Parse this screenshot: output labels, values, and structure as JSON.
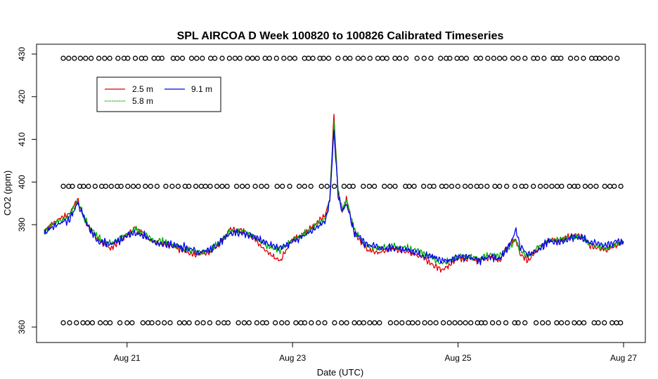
{
  "chart_data": {
    "type": "line",
    "title": "SPL AIRCOA D  Week 100820 to 100826  Calibrated Timeseries",
    "xlabel": "Date (UTC)",
    "ylabel": "CO2 (ppm)",
    "xlim": [
      0,
      7
    ],
    "ylim": [
      366,
      430
    ],
    "x_ticks": [
      {
        "value": 1,
        "label": "Aug 21"
      },
      {
        "value": 3,
        "label": "Aug 23"
      },
      {
        "value": 5,
        "label": "Aug 25"
      },
      {
        "value": 7,
        "label": "Aug 27"
      }
    ],
    "y_ticks": [
      {
        "value": 360,
        "label": "360",
        "pos": 366
      },
      {
        "value": 390,
        "label": "390",
        "pos": 390
      },
      {
        "value": 400,
        "label": "400",
        "pos": 400
      },
      {
        "value": 410,
        "label": "410",
        "pos": 410
      },
      {
        "value": 420,
        "label": "420",
        "pos": 420
      },
      {
        "value": 430,
        "label": "430",
        "pos": 430
      }
    ],
    "legend": {
      "placement": "top-left",
      "entries": [
        {
          "name": "2.5 m",
          "color": "#dd0000"
        },
        {
          "name": "5.8 m",
          "color": "#00aa00"
        },
        {
          "name": "9.1 m",
          "color": "#0000ee"
        }
      ]
    },
    "x": [
      0.0,
      0.1,
      0.2,
      0.25,
      0.3,
      0.4,
      0.5,
      0.55,
      0.65,
      0.8,
      0.9,
      1.0,
      1.1,
      1.2,
      1.3,
      1.45,
      1.6,
      1.75,
      1.85,
      2.0,
      2.1,
      2.25,
      2.4,
      2.55,
      2.7,
      2.85,
      3.0,
      3.15,
      3.3,
      3.4,
      3.45,
      3.5,
      3.55,
      3.6,
      3.65,
      3.75,
      3.9,
      4.05,
      4.2,
      4.4,
      4.55,
      4.7,
      4.8,
      4.9,
      5.0,
      5.15,
      5.25,
      5.4,
      5.5,
      5.6,
      5.7,
      5.75,
      5.85,
      5.95,
      6.1,
      6.25,
      6.4,
      6.5,
      6.6,
      6.7,
      6.8,
      6.9,
      7.0
    ],
    "series": [
      {
        "name": "2.5 m",
        "color": "#dd0000",
        "values": [
          388.5,
          390.5,
          391.5,
          392.0,
          392.5,
          396.0,
          390.5,
          389.0,
          386.5,
          384.5,
          386.0,
          387.5,
          389.5,
          387.5,
          386.0,
          385.5,
          384.5,
          383.5,
          383.0,
          383.5,
          385.0,
          389.0,
          388.5,
          386.5,
          383.5,
          381.5,
          386.5,
          388.0,
          390.5,
          392.5,
          396.0,
          416.0,
          397.5,
          393.0,
          396.0,
          388.0,
          384.0,
          383.5,
          384.5,
          383.5,
          382.5,
          380.5,
          379.5,
          380.5,
          382.0,
          382.0,
          381.5,
          382.5,
          381.5,
          385.0,
          386.5,
          383.0,
          381.5,
          384.0,
          386.5,
          386.5,
          387.5,
          387.5,
          385.0,
          384.5,
          384.0,
          385.0,
          386.0
        ]
      },
      {
        "name": "5.8 m",
        "color": "#00aa00",
        "values": [
          388.5,
          390.0,
          391.0,
          391.5,
          392.0,
          395.5,
          391.0,
          389.5,
          387.0,
          385.5,
          386.5,
          388.0,
          389.0,
          388.0,
          386.5,
          386.0,
          385.0,
          384.0,
          383.5,
          384.0,
          385.5,
          388.5,
          388.5,
          387.0,
          385.0,
          384.0,
          386.5,
          388.0,
          390.0,
          391.5,
          396.0,
          414.0,
          398.0,
          393.5,
          396.0,
          388.5,
          385.0,
          384.5,
          385.0,
          384.5,
          383.5,
          382.0,
          381.0,
          381.5,
          382.5,
          382.5,
          382.0,
          383.0,
          382.5,
          384.5,
          386.5,
          384.0,
          382.5,
          384.5,
          386.5,
          386.5,
          387.0,
          387.0,
          385.5,
          385.0,
          384.5,
          385.5,
          386.0
        ]
      },
      {
        "name": "9.1 m",
        "color": "#0000ee",
        "values": [
          388.0,
          389.5,
          390.5,
          391.0,
          391.0,
          395.0,
          391.0,
          389.0,
          386.0,
          385.5,
          386.0,
          387.5,
          388.0,
          387.5,
          386.0,
          385.5,
          385.0,
          384.5,
          383.5,
          384.0,
          385.5,
          388.0,
          388.0,
          387.0,
          385.5,
          384.5,
          386.0,
          387.5,
          389.5,
          391.0,
          395.5,
          412.0,
          397.0,
          393.0,
          395.0,
          388.0,
          385.5,
          384.5,
          384.5,
          384.0,
          383.0,
          382.5,
          381.5,
          381.5,
          382.5,
          382.5,
          381.5,
          382.5,
          382.0,
          384.5,
          388.5,
          385.0,
          383.0,
          384.0,
          386.0,
          386.0,
          387.0,
          387.0,
          386.0,
          385.5,
          385.0,
          386.0,
          386.0
        ]
      }
    ],
    "marker_rows": [
      {
        "name": "marker-row-top",
        "y": 429
      },
      {
        "name": "marker-row-middle",
        "y": 399
      },
      {
        "name": "marker-row-bottom",
        "y": 367
      }
    ],
    "marker_symbol": "o",
    "grid": false
  }
}
